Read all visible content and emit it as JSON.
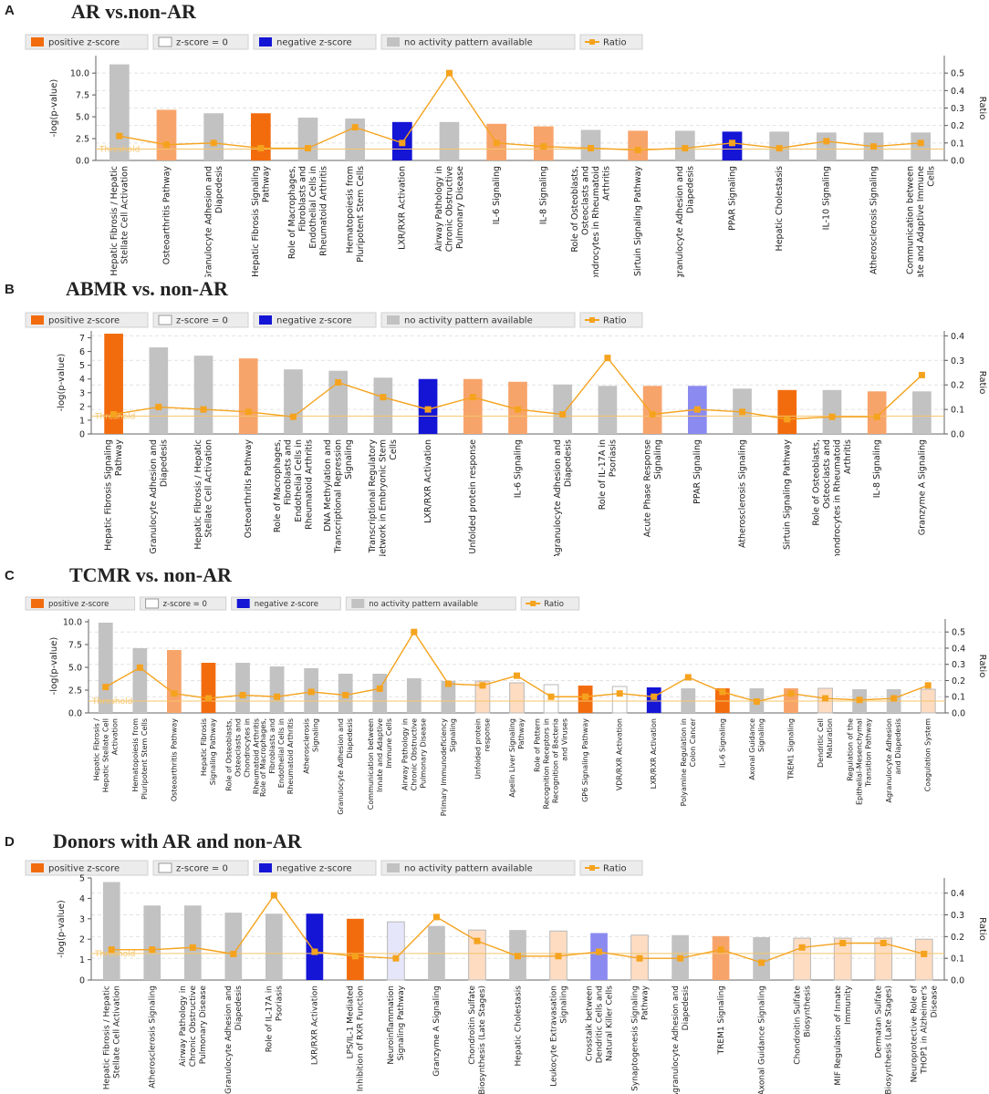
{
  "colors": {
    "positive": "#F26C0E",
    "positive_light": "#F7A46B",
    "positive_pale": "#FDDCC2",
    "zero": "#FFFFFF",
    "negative": "#1515D6",
    "negative_light": "#8A8AF0",
    "negative_pale": "#E6E6FA",
    "gray": "#C2C2C2",
    "ratio": "#F5A31E",
    "threshold": "#F5C56A"
  },
  "legend": {
    "positive": "positive z-score",
    "zero": "z-score = 0",
    "negative": "negative z-score",
    "none": "no activity pattern available",
    "ratio": "Ratio"
  },
  "axis": {
    "left_label": "-log(p-value)",
    "right_label": "Ratio",
    "threshold_label": "Threshold"
  },
  "chart_data": [
    {
      "type": "bar",
      "panel": "A",
      "title": "AR vs.non-AR",
      "ylim": [
        0,
        12
      ],
      "yticks": [
        "0.0",
        "2.5",
        "5.0",
        "7.5",
        "10.0"
      ],
      "ytick_values": [
        0,
        2.5,
        5,
        7.5,
        10
      ],
      "ratio_lim": [
        0,
        0.6
      ],
      "ratio_ticks": [
        "0.0",
        "0.1",
        "0.2",
        "0.3",
        "0.4",
        "0.5"
      ],
      "ratio_tick_values": [
        0,
        0.1,
        0.2,
        0.3,
        0.4,
        0.5
      ],
      "threshold": 1.3,
      "categories": [
        "Hepatic Fibrosis / Hepatic Stellate Cell Activation",
        "Osteoarthritis Pathway",
        "Granulocyte Adhesion and Diapedesis",
        "Hepatic Fibrosis Signaling Pathway",
        "Role of Macrophages, Fibroblasts and Endothelial Cells in Rheumatoid Arthritis",
        "Hematopoiesis from Pluripotent Stem Cells",
        "LXR/RXR Activation",
        "Airway Pathology in Chronic Obstructive Pulmonary Disease",
        "IL-6 Signaling",
        "IL-8 Signaling",
        "Role of Osteoblasts, Osteoclasts and Chondrocytes in Rheumatoid Arthritis",
        "Sirtuin Signaling Pathway",
        "Agranulocyte Adhesion and Diapedesis",
        "PPAR Signaling",
        "Hepatic Cholestasis",
        "IL-10 Signaling",
        "Atherosclerosis Signaling",
        "Communication between Innate and Adaptive Immune Cells"
      ],
      "values": [
        11.0,
        5.8,
        5.4,
        5.4,
        4.9,
        4.8,
        4.4,
        4.4,
        4.2,
        3.9,
        3.5,
        3.4,
        3.4,
        3.3,
        3.3,
        3.2,
        3.2,
        3.2
      ],
      "colors": [
        "gray",
        "positive_light",
        "gray",
        "positive",
        "gray",
        "gray",
        "negative",
        "gray",
        "positive_light",
        "positive_light",
        "gray",
        "positive_light",
        "gray",
        "negative",
        "gray",
        "gray",
        "gray",
        "gray"
      ],
      "ratio": [
        0.14,
        0.09,
        0.1,
        0.07,
        0.07,
        0.19,
        0.1,
        0.5,
        0.1,
        0.08,
        0.07,
        0.06,
        0.07,
        0.1,
        0.07,
        0.11,
        0.08,
        0.1
      ]
    },
    {
      "type": "bar",
      "panel": "B",
      "title": "ABMR vs. non-AR",
      "ylim": [
        0,
        7.5
      ],
      "yticks": [
        "0",
        "1",
        "2",
        "3",
        "4",
        "5",
        "6",
        "7"
      ],
      "ytick_values": [
        0,
        1,
        2,
        3,
        4,
        5,
        6,
        7
      ],
      "ratio_lim": [
        0,
        0.42
      ],
      "ratio_ticks": [
        "0.0",
        "0.1",
        "0.2",
        "0.3",
        "0.4"
      ],
      "ratio_tick_values": [
        0,
        0.1,
        0.2,
        0.3,
        0.4
      ],
      "threshold": 1.3,
      "categories": [
        "Hepatic Fibrosis Signaling Pathway",
        "Granulocyte Adhesion and Diapedesis",
        "Hepatic Fibrosis / Hepatic Stellate Cell Activation",
        "Osteoarthritis Pathway",
        "Role of Macrophages, Fibroblasts and Endothelial Cells in Rheumatoid Arthritis",
        "DNA Methylation and Transcriptional Repression Signaling",
        "Transcriptional Regulatory Network in Embryonic Stem Cells",
        "LXR/RXR Activation",
        "Unfolded protein response",
        "IL-6 Signaling",
        "Agranulocyte Adhesion and Diapedesis",
        "Role of IL-17A in Psoriasis",
        "Acute Phase Response Signaling",
        "PPAR Signaling",
        "Atherosclerosis Signaling",
        "Sirtuin Signaling Pathway",
        "Role of Osteoblasts, Osteoclasts and Chondrocytes in Rheumatoid Arthritis",
        "IL-8 Signaling",
        "Granzyme A Signaling"
      ],
      "values": [
        7.3,
        6.3,
        5.7,
        5.5,
        4.7,
        4.6,
        4.1,
        4.0,
        4.0,
        3.8,
        3.6,
        3.5,
        3.5,
        3.5,
        3.3,
        3.2,
        3.2,
        3.1,
        3.1
      ],
      "colors": [
        "positive",
        "gray",
        "gray",
        "positive_light",
        "gray",
        "gray",
        "gray",
        "negative",
        "positive_light",
        "positive_light",
        "gray",
        "gray",
        "positive_light",
        "negative_light",
        "gray",
        "positive",
        "gray",
        "positive_light",
        "gray"
      ],
      "ratio": [
        0.08,
        0.11,
        0.1,
        0.09,
        0.07,
        0.21,
        0.15,
        0.1,
        0.15,
        0.1,
        0.08,
        0.31,
        0.08,
        0.1,
        0.09,
        0.06,
        0.07,
        0.07,
        0.24
      ]
    },
    {
      "type": "bar",
      "panel": "C",
      "title": "TCMR vs.  non-AR",
      "ylim": [
        0,
        10.3
      ],
      "yticks": [
        "0.0",
        "2.5",
        "5.0",
        "7.5",
        "10.0"
      ],
      "ytick_values": [
        0,
        2.5,
        5,
        7.5,
        10
      ],
      "ratio_lim": [
        0,
        0.58
      ],
      "ratio_ticks": [
        "0.0",
        "0.1",
        "0.2",
        "0.3",
        "0.4",
        "0.5"
      ],
      "ratio_tick_values": [
        0,
        0.1,
        0.2,
        0.3,
        0.4,
        0.5
      ],
      "threshold": 1.3,
      "categories": [
        "Hepatic Fibrosis / Hepatic Stellate Cell Activation",
        "Hematopoiesis from Pluripotent Stem Cells",
        "Osteoarthritis Pathway",
        "Hepatic Fibrosis Signaling Pathway",
        "Role of Osteoblasts, Osteoclasts and Chondrocytes in Rheumatoid Arthritis",
        "Role of Macrophages, Fibroblasts and Endothelial Cells in Rheumatoid Arthritis",
        "Atherosclerosis Signaling",
        "Granulocyte Adhesion and Diapedesis",
        "Communication between Innate and Adaptive Immune Cells",
        "Airway Pathology in Chronic Obstructive Pulmonary Disease",
        "Primary Immunodeficiency Signaling",
        "Unfolded protein response",
        "Apelin Liver Signaling Pathway",
        "Role of Pattern Recognition Receptors in Recognition of Bacteria and Viruses",
        "GP6 Signaling Pathway",
        "VDR/RXR Activation",
        "LXR/RXR Activation",
        "Polyamine Regulation in Colon Cancer",
        "IL-6 Signaling",
        "Axonal Guidance Signaling",
        "TREM1 Signaling",
        "Dendritic Cell Maturation",
        "Regulation of the Epithelial-Mesenchymal Transition Pathway",
        "Agranulocyte Adhesion and Diapedesis",
        "Coagulation System"
      ],
      "values": [
        9.9,
        7.1,
        6.9,
        5.5,
        5.5,
        5.1,
        4.9,
        4.3,
        4.3,
        3.8,
        3.5,
        3.5,
        3.3,
        3.1,
        3.0,
        2.9,
        2.8,
        2.7,
        2.7,
        2.7,
        2.7,
        2.7,
        2.6,
        2.6,
        2.6
      ],
      "colors": [
        "gray",
        "gray",
        "positive_light",
        "positive",
        "gray",
        "gray",
        "gray",
        "gray",
        "gray",
        "gray",
        "gray",
        "positive_pale",
        "positive_pale",
        "zero",
        "positive",
        "zero",
        "negative",
        "gray",
        "positive",
        "gray",
        "positive_light",
        "positive_pale",
        "gray",
        "gray",
        "positive_pale"
      ],
      "ratio": [
        0.16,
        0.28,
        0.12,
        0.09,
        0.11,
        0.1,
        0.13,
        0.11,
        0.15,
        0.5,
        0.18,
        0.17,
        0.23,
        0.1,
        0.1,
        0.12,
        0.1,
        0.22,
        0.13,
        0.07,
        0.12,
        0.09,
        0.08,
        0.09,
        0.17
      ]
    },
    {
      "type": "bar",
      "panel": "D",
      "title": "Donors with AR and non-AR",
      "ylim": [
        0,
        5
      ],
      "yticks": [
        "0",
        "1",
        "2",
        "3",
        "4",
        "5"
      ],
      "ytick_values": [
        0,
        1,
        2,
        3,
        4,
        5
      ],
      "ratio_lim": [
        0,
        0.47
      ],
      "ratio_ticks": [
        "0.0",
        "0.1",
        "0.2",
        "0.3",
        "0.4"
      ],
      "ratio_tick_values": [
        0,
        0.1,
        0.2,
        0.3,
        0.4
      ],
      "threshold": 1.3,
      "categories": [
        "Hepatic Fibrosis / Hepatic Stellate Cell Activation",
        "Atherosclerosis Signaling",
        "Airway Pathology in Chronic Obstructive Pulmonary Disease",
        "Granulocyte Adhesion and Diapedesis",
        "Role of IL-17A in Psoriasis",
        "LXR/RXR Activation",
        "LPS/IL-1 Mediated Inhibition of RXR Function",
        "Neuroinflammation Signaling Pathway",
        "Granzyme A Signaling",
        "Chondroitin Sulfate Biosynthesis (Late Stages)",
        "Hepatic Cholestasis",
        "Leukocyte Extravasation Signaling",
        "Crosstalk between Dendritic Cells and Natural Killer Cells",
        "Synaptogenesis Signaling Pathway",
        "Agranulocyte Adhesion and Diapedesis",
        "TREM1 Signaling",
        "Axonal Guidance Signaling",
        "Chondroitin Sulfate Biosynthesis",
        "MIF Regulation of Innate Immunity",
        "Dermatan Sulfate Biosynthesis (Late Stages)",
        "Neuroprotective Role of THOP1 in Alzheimer's Disease"
      ],
      "values": [
        4.8,
        3.65,
        3.65,
        3.3,
        3.25,
        3.25,
        3.0,
        2.85,
        2.65,
        2.45,
        2.45,
        2.4,
        2.3,
        2.2,
        2.2,
        2.15,
        2.1,
        2.05,
        2.05,
        2.05,
        2.0
      ],
      "colors": [
        "gray",
        "gray",
        "gray",
        "gray",
        "gray",
        "negative",
        "positive",
        "negative_pale",
        "gray",
        "positive_pale",
        "gray",
        "positive_pale",
        "negative_light",
        "positive_pale",
        "gray",
        "positive_light",
        "gray",
        "positive_pale",
        "positive_pale",
        "positive_pale",
        "positive_pale"
      ],
      "ratio": [
        0.14,
        0.14,
        0.15,
        0.12,
        0.39,
        0.13,
        0.11,
        0.1,
        0.29,
        0.18,
        0.11,
        0.11,
        0.13,
        0.1,
        0.1,
        0.14,
        0.08,
        0.15,
        0.17,
        0.17,
        0.12
      ]
    }
  ]
}
